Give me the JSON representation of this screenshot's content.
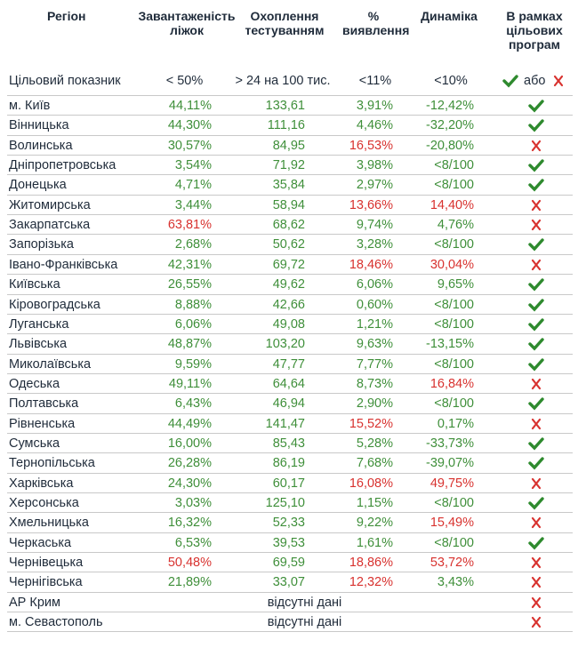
{
  "header": {
    "columns": [
      "Регіон",
      "Завантаженість ліжок",
      "Охоплення тестуванням",
      "% виявлення",
      "Динаміка",
      "В рамках цільових програм"
    ]
  },
  "target": {
    "label": "Цільовий показник",
    "cells": [
      "< 50%",
      "> 24 на 100 тис.",
      "<11%",
      "<10%"
    ],
    "legend": "або"
  },
  "palette": {
    "green": "#3f8f3a",
    "red": "#d8322f"
  },
  "rows": [
    {
      "name": "м. Київ",
      "cells": [
        "44,11%",
        "133,61",
        "3,91%",
        "-12,42%"
      ],
      "tones": [
        "green",
        "green",
        "green",
        "green"
      ],
      "status": "ok"
    },
    {
      "name": "Вінницька",
      "cells": [
        "44,30%",
        "111,16",
        "4,46%",
        "-32,20%"
      ],
      "tones": [
        "green",
        "green",
        "green",
        "green"
      ],
      "status": "ok"
    },
    {
      "name": "Волинська",
      "cells": [
        "30,57%",
        "84,95",
        "16,53%",
        "-20,80%"
      ],
      "tones": [
        "green",
        "green",
        "red",
        "green"
      ],
      "status": "fail"
    },
    {
      "name": "Дніпропетровська",
      "cells": [
        "3,54%",
        "71,92",
        "3,98%",
        "<8/100"
      ],
      "tones": [
        "green",
        "green",
        "green",
        "green"
      ],
      "status": "ok"
    },
    {
      "name": "Донецька",
      "cells": [
        "4,71%",
        "35,84",
        "2,97%",
        "<8/100"
      ],
      "tones": [
        "green",
        "green",
        "green",
        "green"
      ],
      "status": "ok"
    },
    {
      "name": "Житомирська",
      "cells": [
        "3,44%",
        "58,94",
        "13,66%",
        "14,40%"
      ],
      "tones": [
        "green",
        "green",
        "red",
        "red"
      ],
      "status": "fail"
    },
    {
      "name": "Закарпатська",
      "cells": [
        "63,81%",
        "68,62",
        "9,74%",
        "4,76%"
      ],
      "tones": [
        "red",
        "green",
        "green",
        "green"
      ],
      "status": "fail"
    },
    {
      "name": "Запорізька",
      "cells": [
        "2,68%",
        "50,62",
        "3,28%",
        "<8/100"
      ],
      "tones": [
        "green",
        "green",
        "green",
        "green"
      ],
      "status": "ok"
    },
    {
      "name": "Івано-Франківська",
      "cells": [
        "42,31%",
        "69,72",
        "18,46%",
        "30,04%"
      ],
      "tones": [
        "green",
        "green",
        "red",
        "red"
      ],
      "status": "fail"
    },
    {
      "name": "Київська",
      "cells": [
        "26,55%",
        "49,62",
        "6,06%",
        "9,65%"
      ],
      "tones": [
        "green",
        "green",
        "green",
        "green"
      ],
      "status": "ok"
    },
    {
      "name": "Кіровоградська",
      "cells": [
        "8,88%",
        "42,66",
        "0,60%",
        "<8/100"
      ],
      "tones": [
        "green",
        "green",
        "green",
        "green"
      ],
      "status": "ok"
    },
    {
      "name": "Луганська",
      "cells": [
        "6,06%",
        "49,08",
        "1,21%",
        "<8/100"
      ],
      "tones": [
        "green",
        "green",
        "green",
        "green"
      ],
      "status": "ok"
    },
    {
      "name": "Львівська",
      "cells": [
        "48,87%",
        "103,20",
        "9,63%",
        "-13,15%"
      ],
      "tones": [
        "green",
        "green",
        "green",
        "green"
      ],
      "status": "ok"
    },
    {
      "name": "Миколаївська",
      "cells": [
        "9,59%",
        "47,77",
        "7,77%",
        "<8/100"
      ],
      "tones": [
        "green",
        "green",
        "green",
        "green"
      ],
      "status": "ok"
    },
    {
      "name": "Одеська",
      "cells": [
        "49,11%",
        "64,64",
        "8,73%",
        "16,84%"
      ],
      "tones": [
        "green",
        "green",
        "green",
        "red"
      ],
      "status": "fail"
    },
    {
      "name": "Полтавська",
      "cells": [
        "6,43%",
        "46,94",
        "2,90%",
        "<8/100"
      ],
      "tones": [
        "green",
        "green",
        "green",
        "green"
      ],
      "status": "ok"
    },
    {
      "name": "Рівненська",
      "cells": [
        "44,49%",
        "141,47",
        "15,52%",
        "0,17%"
      ],
      "tones": [
        "green",
        "green",
        "red",
        "green"
      ],
      "status": "fail"
    },
    {
      "name": "Сумська",
      "cells": [
        "16,00%",
        "85,43",
        "5,28%",
        "-33,73%"
      ],
      "tones": [
        "green",
        "green",
        "green",
        "green"
      ],
      "status": "ok"
    },
    {
      "name": "Тернопільська",
      "cells": [
        "26,28%",
        "86,19",
        "7,68%",
        "-39,07%"
      ],
      "tones": [
        "green",
        "green",
        "green",
        "green"
      ],
      "status": "ok"
    },
    {
      "name": "Харківська",
      "cells": [
        "24,30%",
        "60,17",
        "16,08%",
        "49,75%"
      ],
      "tones": [
        "green",
        "green",
        "red",
        "red"
      ],
      "status": "fail"
    },
    {
      "name": "Херсонська",
      "cells": [
        "3,03%",
        "125,10",
        "1,15%",
        "<8/100"
      ],
      "tones": [
        "green",
        "green",
        "green",
        "green"
      ],
      "status": "ok"
    },
    {
      "name": "Хмельницька",
      "cells": [
        "16,32%",
        "52,33",
        "9,22%",
        "15,49%"
      ],
      "tones": [
        "green",
        "green",
        "green",
        "red"
      ],
      "status": "fail"
    },
    {
      "name": "Черкаська",
      "cells": [
        "6,53%",
        "39,53",
        "1,61%",
        "<8/100"
      ],
      "tones": [
        "green",
        "green",
        "green",
        "green"
      ],
      "status": "ok"
    },
    {
      "name": "Чернівецька",
      "cells": [
        "50,48%",
        "69,59",
        "18,86%",
        "53,72%"
      ],
      "tones": [
        "red",
        "green",
        "red",
        "red"
      ],
      "status": "fail"
    },
    {
      "name": "Чернігівська",
      "cells": [
        "21,89%",
        "33,07",
        "12,32%",
        "3,43%"
      ],
      "tones": [
        "green",
        "green",
        "red",
        "green"
      ],
      "status": "fail"
    },
    {
      "name": "АР Крим",
      "note": "відсутні дані",
      "status": "fail"
    },
    {
      "name": "м. Севастополь",
      "note": "відсутні дані",
      "status": "fail"
    }
  ]
}
